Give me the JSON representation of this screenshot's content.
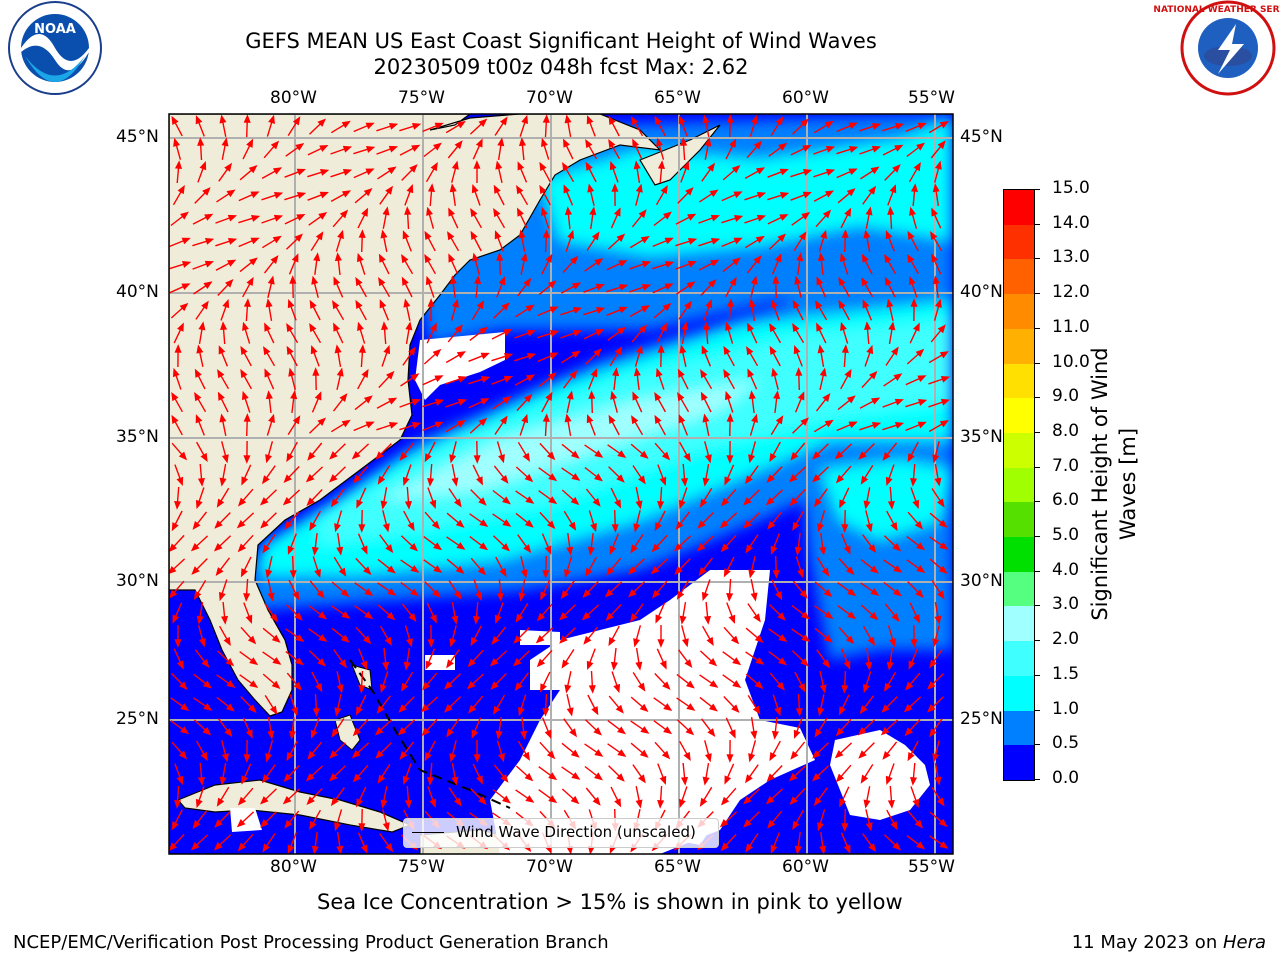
{
  "title": {
    "line1": "GEFS MEAN US East Coast Significant Height of Wind Waves",
    "line2": "20230509 t00z 048h fcst   Max: 2.62"
  },
  "map": {
    "lon_labels": [
      "80°W",
      "75°W",
      "70°W",
      "65°W",
      "60°W",
      "55°W"
    ],
    "lat_labels": [
      "45°N",
      "40°N",
      "35°N",
      "30°N",
      "25°N"
    ],
    "extent": {
      "lon": [
        -85,
        -54.5
      ],
      "lat": [
        20.3,
        45.8
      ]
    },
    "legend_label": "Wind Wave Direction (unscaled)",
    "colors": {
      "land": "#efedd9",
      "no_data": "#ffffff",
      "arrows": "#ff0000",
      "grid": "#b0b0b0"
    }
  },
  "colorbar": {
    "label": "Significant Height of Wind Waves [m]",
    "ticks": [
      "0.0",
      "0.5",
      "1.0",
      "1.5",
      "2.0",
      "3.0",
      "4.0",
      "5.0",
      "6.0",
      "7.0",
      "8.0",
      "9.0",
      "10.0",
      "11.0",
      "12.0",
      "13.0",
      "14.0",
      "15.0"
    ],
    "colors": [
      "#0000ff",
      "#0080ff",
      "#00ffff",
      "#40ffff",
      "#a0ffff",
      "#55ff80",
      "#00e000",
      "#55e000",
      "#a0ff00",
      "#ccff00",
      "#ffff00",
      "#ffe000",
      "#ffb000",
      "#ff8c00",
      "#ff6000",
      "#ff3000",
      "#ff0000"
    ]
  },
  "caption": "Sea Ice Concentration > 15% is shown in pink to yellow",
  "footer": {
    "left": "NCEP/EMC/Verification Post Processing Product Generation Branch",
    "right_prefix": "11 May 2023 on ",
    "right_host": "Hera"
  },
  "logos": {
    "noaa": "NOAA",
    "nws": "NATIONAL WEATHER SERVICE"
  }
}
